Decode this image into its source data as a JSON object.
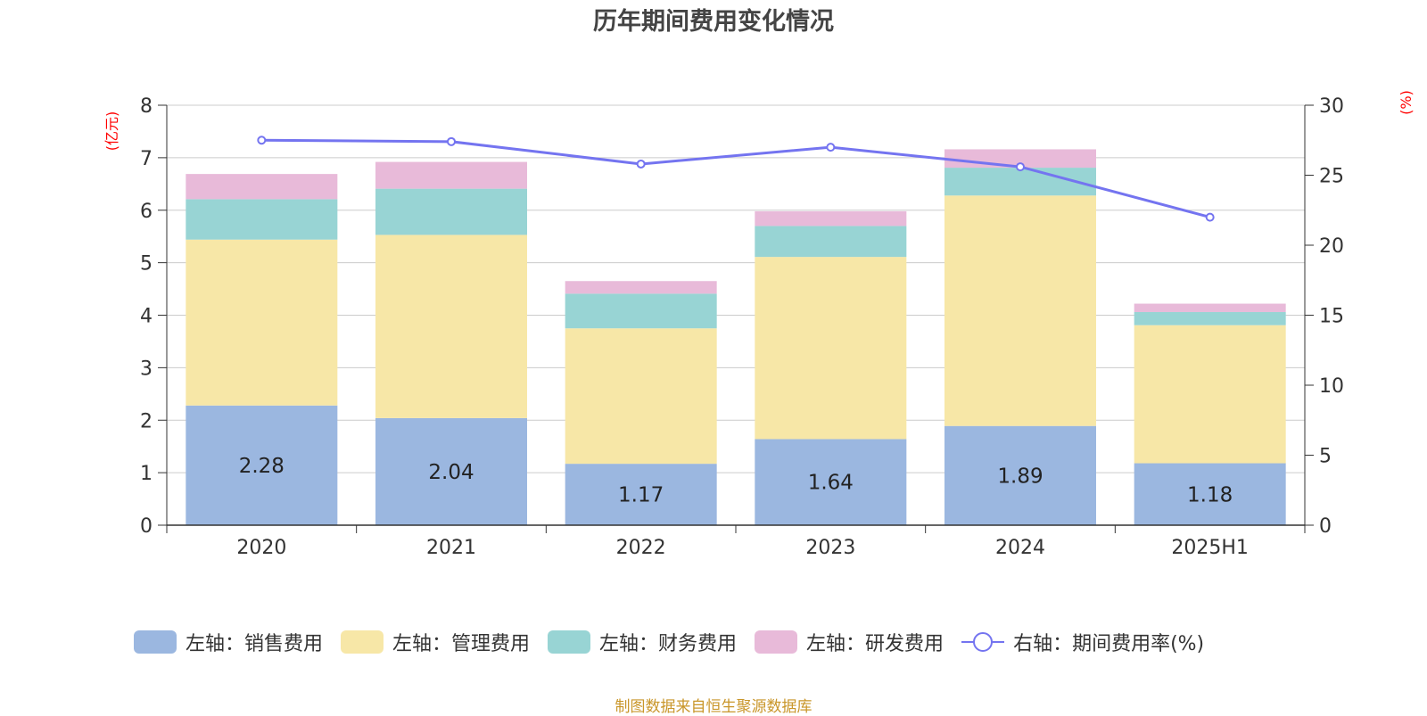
{
  "title": "历年期间费用变化情况",
  "left_axis_unit": "(亿元)",
  "right_axis_unit": "(%)",
  "footer": "制图数据来自恒生聚源数据库",
  "chart_data": {
    "type": "bar",
    "stacked": true,
    "title": "历年期间费用变化情况",
    "categories": [
      "2020",
      "2021",
      "2022",
      "2023",
      "2024",
      "2025H1"
    ],
    "y_left": {
      "label": "(亿元)",
      "min": 0,
      "max": 8,
      "ticks": [
        "0",
        "1",
        "2",
        "3",
        "4",
        "5",
        "6",
        "7",
        "8"
      ]
    },
    "y_right": {
      "label": "(%)",
      "min": 0,
      "max": 30,
      "ticks": [
        "0",
        "5",
        "10",
        "15",
        "20",
        "25",
        "30"
      ]
    },
    "grid": true,
    "legend_position": "bottom",
    "series": [
      {
        "name": "左轴：销售费用",
        "axis": "left",
        "type": "bar",
        "color": "#9bb7e0",
        "values": [
          2.28,
          2.04,
          1.17,
          1.64,
          1.89,
          1.18
        ],
        "labels": [
          "2.28",
          "2.04",
          "1.17",
          "1.64",
          "1.89",
          "1.18"
        ]
      },
      {
        "name": "左轴：管理费用",
        "axis": "left",
        "type": "bar",
        "color": "#f7e7a7",
        "values": [
          3.16,
          3.49,
          2.58,
          3.47,
          4.39,
          2.63
        ]
      },
      {
        "name": "左轴：财务费用",
        "axis": "left",
        "type": "bar",
        "color": "#98d4d4",
        "values": [
          0.77,
          0.88,
          0.66,
          0.59,
          0.53,
          0.25
        ]
      },
      {
        "name": "左轴：研发费用",
        "axis": "left",
        "type": "bar",
        "color": "#e8bad9",
        "values": [
          0.48,
          0.51,
          0.24,
          0.28,
          0.35,
          0.16
        ]
      },
      {
        "name": "右轴：期间费用率(%)",
        "axis": "right",
        "type": "line",
        "color": "#7474f0",
        "values": [
          27.5,
          27.4,
          25.8,
          27.0,
          25.6,
          22.0
        ]
      }
    ]
  }
}
